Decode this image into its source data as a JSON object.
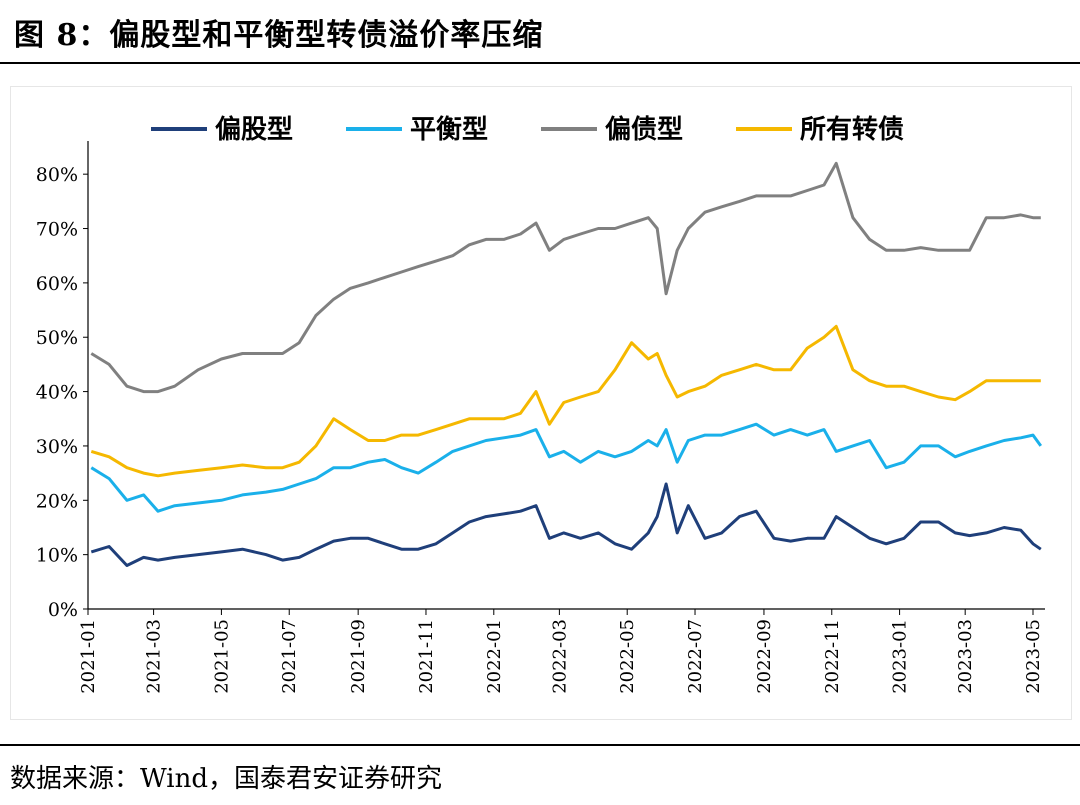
{
  "header": {
    "title": "图 8：偏股型和平衡型转债溢价率压缩"
  },
  "footer": {
    "source": "数据来源：Wind，国泰君安证券研究"
  },
  "colors": {
    "equity": "#1f3f7a",
    "balanced": "#1ab0ea",
    "bond": "#808080",
    "all": "#f5b800"
  },
  "chart_data": {
    "type": "line",
    "title": "",
    "xlabel": "",
    "ylabel": "",
    "ylim": [
      0,
      85
    ],
    "yticks": [
      "0%",
      "10%",
      "20%",
      "30%",
      "40%",
      "50%",
      "60%",
      "70%",
      "80%"
    ],
    "xticks": [
      "2021-01",
      "2021-03",
      "2021-05",
      "2021-07",
      "2021-09",
      "2021-11",
      "2022-01",
      "2022-03",
      "2022-05",
      "2022-07",
      "2022-09",
      "2022-11",
      "2023-01",
      "2023-03",
      "2023-05"
    ],
    "legend_position": "top",
    "grid": false,
    "series": [
      {
        "name": "偏股型",
        "color": "#1f3f7a",
        "x": [
          "2021-01-04",
          "2021-01-20",
          "2021-02-05",
          "2021-02-20",
          "2021-03-05",
          "2021-03-20",
          "2021-04-10",
          "2021-05-01",
          "2021-05-20",
          "2021-06-10",
          "2021-06-25",
          "2021-07-10",
          "2021-07-25",
          "2021-08-10",
          "2021-08-25",
          "2021-09-10",
          "2021-09-25",
          "2021-10-10",
          "2021-10-25",
          "2021-11-10",
          "2021-11-25",
          "2021-12-10",
          "2021-12-25",
          "2022-01-10",
          "2022-01-25",
          "2022-02-08",
          "2022-02-20",
          "2022-03-05",
          "2022-03-20",
          "2022-04-05",
          "2022-04-20",
          "2022-05-05",
          "2022-05-20",
          "2022-05-28",
          "2022-06-05",
          "2022-06-15",
          "2022-06-25",
          "2022-07-10",
          "2022-07-25",
          "2022-08-10",
          "2022-08-25",
          "2022-09-10",
          "2022-09-25",
          "2022-10-10",
          "2022-10-25",
          "2022-11-05",
          "2022-11-20",
          "2022-12-05",
          "2022-12-20",
          "2023-01-05",
          "2023-01-20",
          "2023-02-05",
          "2023-02-20",
          "2023-03-05",
          "2023-03-20",
          "2023-04-05",
          "2023-04-20",
          "2023-05-01",
          "2023-05-08"
        ],
        "values": [
          10.5,
          11.5,
          8,
          9.5,
          9,
          9.5,
          10,
          10.5,
          11,
          10,
          9,
          9.5,
          11,
          12.5,
          13,
          13,
          12,
          11,
          11,
          12,
          14,
          16,
          17,
          17.5,
          18,
          19,
          13,
          14,
          13,
          14,
          12,
          11,
          14,
          17,
          23,
          14,
          19,
          13,
          14,
          17,
          18,
          13,
          12.5,
          13,
          13,
          17,
          15,
          13,
          12,
          13,
          16,
          16,
          14,
          13.5,
          14,
          15,
          14.5,
          12,
          11
        ]
      },
      {
        "name": "平衡型",
        "color": "#1ab0ea",
        "x": [
          "2021-01-04",
          "2021-01-20",
          "2021-02-05",
          "2021-02-20",
          "2021-03-05",
          "2021-03-20",
          "2021-04-10",
          "2021-05-01",
          "2021-05-20",
          "2021-06-10",
          "2021-06-25",
          "2021-07-10",
          "2021-07-25",
          "2021-08-10",
          "2021-08-25",
          "2021-09-10",
          "2021-09-25",
          "2021-10-10",
          "2021-10-25",
          "2021-11-10",
          "2021-11-25",
          "2021-12-10",
          "2021-12-25",
          "2022-01-10",
          "2022-01-25",
          "2022-02-08",
          "2022-02-20",
          "2022-03-05",
          "2022-03-20",
          "2022-04-05",
          "2022-04-20",
          "2022-05-05",
          "2022-05-20",
          "2022-05-28",
          "2022-06-05",
          "2022-06-15",
          "2022-06-25",
          "2022-07-10",
          "2022-07-25",
          "2022-08-10",
          "2022-08-25",
          "2022-09-10",
          "2022-09-25",
          "2022-10-10",
          "2022-10-25",
          "2022-11-05",
          "2022-11-20",
          "2022-12-05",
          "2022-12-20",
          "2023-01-05",
          "2023-01-20",
          "2023-02-05",
          "2023-02-20",
          "2023-03-05",
          "2023-03-20",
          "2023-04-05",
          "2023-04-20",
          "2023-05-01",
          "2023-05-08"
        ],
        "values": [
          26,
          24,
          20,
          21,
          18,
          19,
          19.5,
          20,
          21,
          21.5,
          22,
          23,
          24,
          26,
          26,
          27,
          27.5,
          26,
          25,
          27,
          29,
          30,
          31,
          31.5,
          32,
          33,
          28,
          29,
          27,
          29,
          28,
          29,
          31,
          30,
          33,
          27,
          31,
          32,
          32,
          33,
          34,
          32,
          33,
          32,
          33,
          29,
          30,
          31,
          26,
          27,
          30,
          30,
          28,
          29,
          30,
          31,
          31.5,
          32,
          30
        ]
      },
      {
        "name": "偏债型",
        "color": "#808080",
        "x": [
          "2021-01-04",
          "2021-01-20",
          "2021-02-05",
          "2021-02-20",
          "2021-03-05",
          "2021-03-20",
          "2021-04-10",
          "2021-05-01",
          "2021-05-20",
          "2021-06-10",
          "2021-06-25",
          "2021-07-10",
          "2021-07-25",
          "2021-08-10",
          "2021-08-25",
          "2021-09-10",
          "2021-09-25",
          "2021-10-10",
          "2021-10-25",
          "2021-11-10",
          "2021-11-25",
          "2021-12-10",
          "2021-12-25",
          "2022-01-10",
          "2022-01-25",
          "2022-02-08",
          "2022-02-20",
          "2022-03-05",
          "2022-03-20",
          "2022-04-05",
          "2022-04-20",
          "2022-05-05",
          "2022-05-20",
          "2022-05-28",
          "2022-06-05",
          "2022-06-15",
          "2022-06-25",
          "2022-07-10",
          "2022-07-25",
          "2022-08-10",
          "2022-08-25",
          "2022-09-10",
          "2022-09-25",
          "2022-10-10",
          "2022-10-25",
          "2022-11-05",
          "2022-11-20",
          "2022-12-05",
          "2022-12-20",
          "2023-01-05",
          "2023-01-20",
          "2023-02-05",
          "2023-02-20",
          "2023-03-05",
          "2023-03-20",
          "2023-04-05",
          "2023-04-20",
          "2023-05-01",
          "2023-05-08"
        ],
        "values": [
          47,
          45,
          41,
          40,
          40,
          41,
          44,
          46,
          47,
          47,
          47,
          49,
          54,
          57,
          59,
          60,
          61,
          62,
          63,
          64,
          65,
          67,
          68,
          68,
          69,
          71,
          66,
          68,
          69,
          70,
          70,
          71,
          72,
          70,
          58,
          66,
          70,
          73,
          74,
          75,
          76,
          76,
          76,
          77,
          78,
          82,
          72,
          68,
          66,
          66,
          66.5,
          66,
          66,
          66,
          72,
          72,
          72.5,
          72,
          72
        ]
      },
      {
        "name": "所有转债",
        "color": "#f5b800",
        "x": [
          "2021-01-04",
          "2021-01-20",
          "2021-02-05",
          "2021-02-20",
          "2021-03-05",
          "2021-03-20",
          "2021-04-10",
          "2021-05-01",
          "2021-05-20",
          "2021-06-10",
          "2021-06-25",
          "2021-07-10",
          "2021-07-25",
          "2021-08-10",
          "2021-08-25",
          "2021-09-10",
          "2021-09-25",
          "2021-10-10",
          "2021-10-25",
          "2021-11-10",
          "2021-11-25",
          "2021-12-10",
          "2021-12-25",
          "2022-01-10",
          "2022-01-25",
          "2022-02-08",
          "2022-02-20",
          "2022-03-05",
          "2022-03-20",
          "2022-04-05",
          "2022-04-20",
          "2022-05-05",
          "2022-05-20",
          "2022-05-28",
          "2022-06-05",
          "2022-06-15",
          "2022-06-25",
          "2022-07-10",
          "2022-07-25",
          "2022-08-10",
          "2022-08-25",
          "2022-09-10",
          "2022-09-25",
          "2022-10-10",
          "2022-10-25",
          "2022-11-05",
          "2022-11-20",
          "2022-12-05",
          "2022-12-20",
          "2023-01-05",
          "2023-01-20",
          "2023-02-05",
          "2023-02-20",
          "2023-03-05",
          "2023-03-20",
          "2023-04-05",
          "2023-04-20",
          "2023-05-01",
          "2023-05-08"
        ],
        "values": [
          29,
          28,
          26,
          25,
          24.5,
          25,
          25.5,
          26,
          26.5,
          26,
          26,
          27,
          30,
          35,
          33,
          31,
          31,
          32,
          32,
          33,
          34,
          35,
          35,
          35,
          36,
          40,
          34,
          38,
          39,
          40,
          44,
          49,
          46,
          47,
          43,
          39,
          40,
          41,
          43,
          44,
          45,
          44,
          44,
          48,
          50,
          52,
          44,
          42,
          41,
          41,
          40,
          39,
          38.5,
          40,
          42,
          42,
          42,
          42,
          42
        ]
      }
    ]
  }
}
